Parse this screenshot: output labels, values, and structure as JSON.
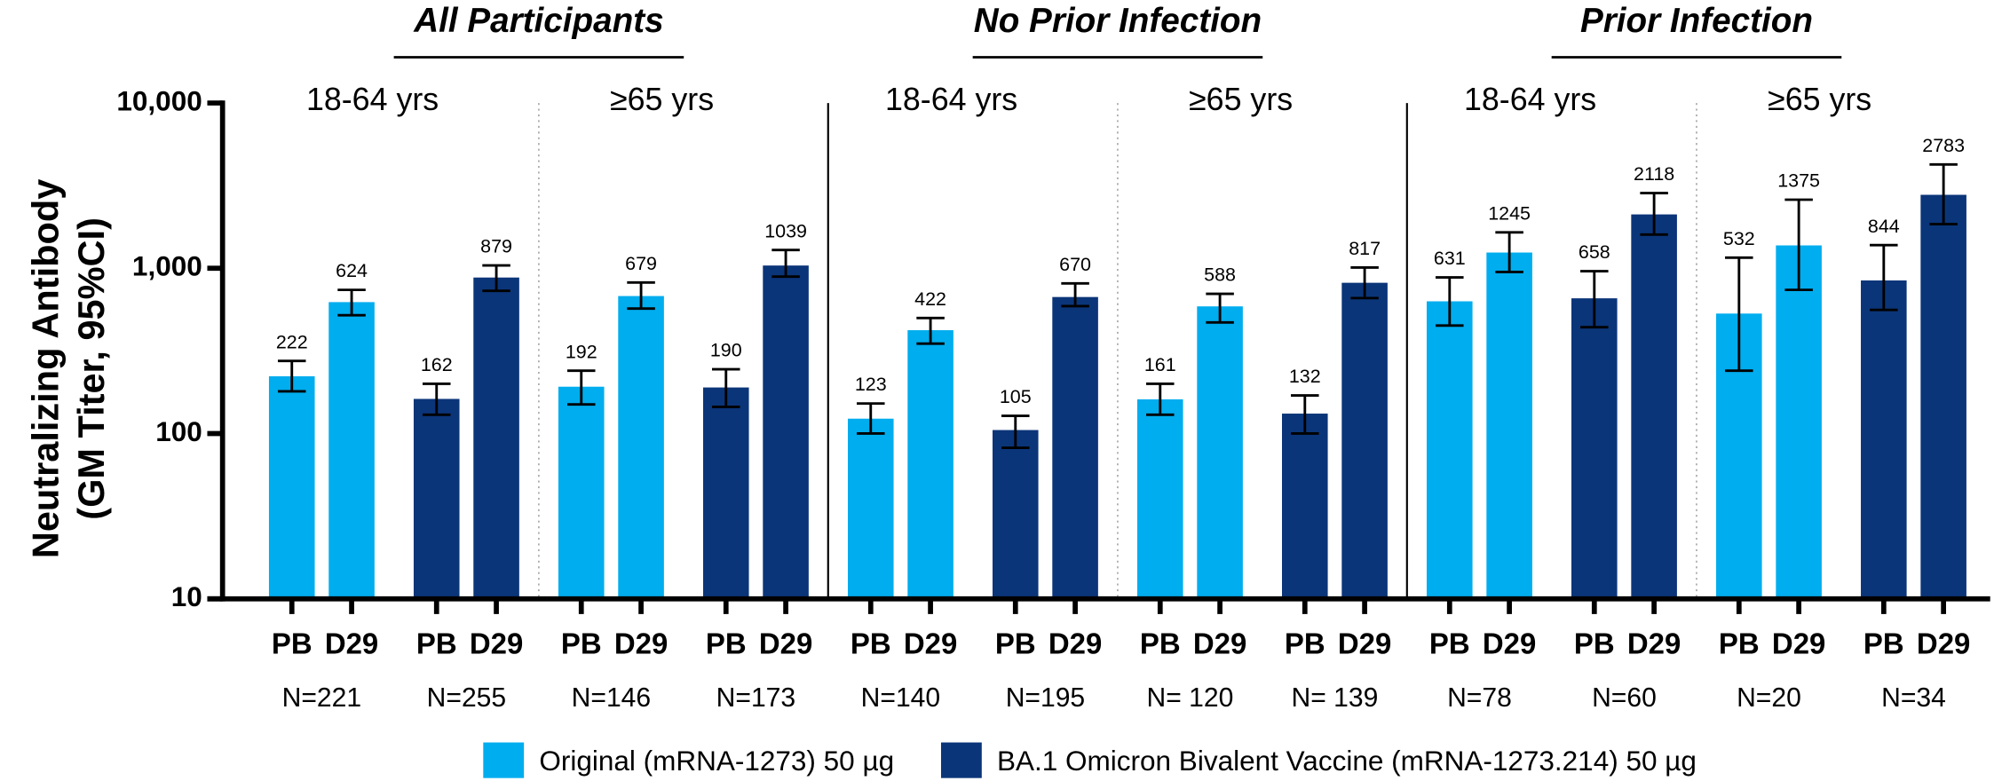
{
  "chart_data": {
    "type": "bar",
    "y_label": [
      "Neutralizing Antibody",
      "(GM Titer, 95%CI)"
    ],
    "log_scale": true,
    "ylim": [
      10,
      10000
    ],
    "yticks": [
      10,
      100,
      {
        "value": 1000,
        "label": "1,000"
      },
      {
        "value": 10000,
        "label": "10,000"
      }
    ],
    "groups": [
      {
        "title": "All Participants",
        "subgroups": [
          "18-64 yrs",
          "≥65 yrs"
        ]
      },
      {
        "title": "No Prior Infection",
        "subgroups": [
          "18-64 yrs",
          "≥65 yrs"
        ]
      },
      {
        "title": "Prior Infection",
        "subgroups": [
          "18-64 yrs",
          "≥65 yrs"
        ]
      }
    ],
    "categories": [
      "PB",
      "D29",
      "PB",
      "D29",
      "PB",
      "D29",
      "PB",
      "D29",
      "PB",
      "D29",
      "PB",
      "D29",
      "PB",
      "D29",
      "PB",
      "D29",
      "PB",
      "D29",
      "PB",
      "D29",
      "PB",
      "D29",
      "PB",
      "D29"
    ],
    "n_labels": [
      "N=221",
      "N=255",
      "N=146",
      "N=173",
      "N=140",
      "N=195",
      "N= 120",
      "N= 139",
      "N=78",
      "N=60",
      "N=20",
      "N=34"
    ],
    "series": [
      {
        "name": "Original (mRNA-1273) 50 µg",
        "color": "#00adee",
        "values": [
          222,
          624,
          null,
          null,
          192,
          679,
          null,
          null,
          123,
          422,
          null,
          null,
          161,
          588,
          null,
          null,
          631,
          1245,
          null,
          null,
          532,
          1375,
          null,
          null
        ]
      },
      {
        "name": "BA.1 Omicron Bivalent Vaccine (mRNA-1273.214) 50 µg",
        "color": "#0b3579",
        "values": [
          null,
          null,
          162,
          879,
          null,
          null,
          190,
          1039,
          null,
          null,
          105,
          670,
          null,
          null,
          132,
          817,
          null,
          null,
          658,
          2118,
          null,
          null,
          844,
          2783
        ]
      }
    ],
    "error_low": [
      180,
      520,
      130,
      730,
      150,
      570,
      145,
      890,
      100,
      350,
      82,
      590,
      130,
      470,
      100,
      660,
      450,
      950,
      440,
      1600,
      240,
      740,
      560,
      1850
    ],
    "error_high": [
      275,
      740,
      200,
      1040,
      240,
      820,
      245,
      1290,
      152,
      500,
      128,
      810,
      200,
      700,
      170,
      1010,
      880,
      1650,
      960,
      2850,
      1160,
      2600,
      1380,
      4250
    ]
  }
}
